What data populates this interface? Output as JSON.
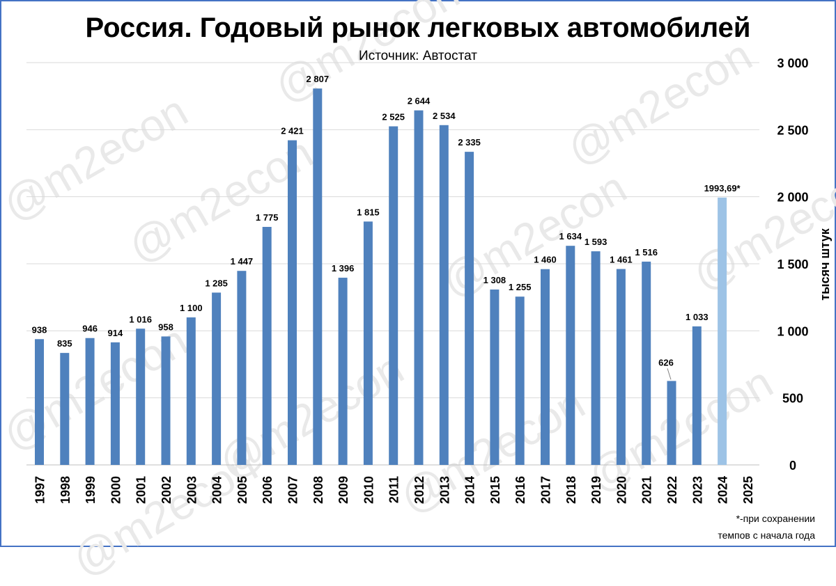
{
  "chart_data": {
    "type": "bar",
    "title": "Россия. Годовый рынок легковых автомобилей",
    "subtitle": "Источник: Автостат",
    "ylabel": "тысяч штук",
    "xlabel": "",
    "ylim": [
      0,
      3000
    ],
    "yticks": [
      0,
      500,
      1000,
      1500,
      2000,
      2500,
      3000
    ],
    "ytick_labels": [
      "0",
      "500",
      "1 000",
      "1 500",
      "2 000",
      "2 500",
      "3 000"
    ],
    "y_axis_side": "right",
    "grid": true,
    "categories": [
      "1997",
      "1998",
      "1999",
      "2000",
      "2001",
      "2002",
      "2003",
      "2004",
      "2005",
      "2006",
      "2007",
      "2008",
      "2009",
      "2010",
      "2011",
      "2012",
      "2013",
      "2014",
      "2015",
      "2016",
      "2017",
      "2018",
      "2019",
      "2020",
      "2021",
      "2022",
      "2023",
      "2024",
      "2025"
    ],
    "values": [
      938,
      835,
      946,
      914,
      1016,
      958,
      1100,
      1285,
      1447,
      1775,
      2421,
      2807,
      1396,
      1815,
      2525,
      2644,
      2534,
      2335,
      1308,
      1255,
      1460,
      1634,
      1593,
      1461,
      1516,
      626,
      1033,
      1993.69,
      null
    ],
    "value_labels": [
      "938",
      "835",
      "946",
      "914",
      "1 016",
      "958",
      "1 100",
      "1 285",
      "1 447",
      "1 775",
      "2 421",
      "2 807",
      "1 396",
      "1 815",
      "2 525",
      "2 644",
      "2 534",
      "2 335",
      "1 308",
      "1 255",
      "1 460",
      "1 634",
      "1 593",
      "1 461",
      "1 516",
      "626",
      "1 033",
      "1993,69*",
      ""
    ],
    "bar_colors": {
      "default": "#4f81bd",
      "highlight": "#9dc3e6"
    },
    "highlight_index": 27,
    "footnote": [
      "*-при сохранении",
      "темпов с начала года"
    ]
  },
  "watermark": "@m2econ",
  "colors": {
    "frame": "#4472c4",
    "grid": "#d9d9d9",
    "axis": "#bfbfbf"
  }
}
